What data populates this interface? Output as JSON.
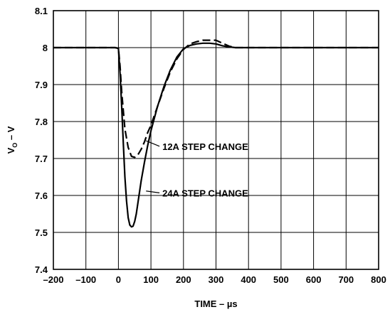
{
  "chart_data": {
    "type": "line",
    "title": "",
    "xlabel": "TIME – µs",
    "ylabel_main": "V",
    "ylabel_sub": "O",
    "ylabel_rest": " – V",
    "xlim": [
      -200,
      800
    ],
    "ylim": [
      7.4,
      8.1
    ],
    "xticks": [
      -200,
      -100,
      0,
      100,
      200,
      300,
      400,
      500,
      600,
      700,
      800
    ],
    "xtick_labels": [
      "–200",
      "–100",
      "0",
      "100",
      "200",
      "300",
      "400",
      "500",
      "600",
      "700",
      "800"
    ],
    "yticks": [
      7.4,
      7.5,
      7.6,
      7.7,
      7.8,
      7.9,
      8.0,
      8.1
    ],
    "ytick_labels": [
      "7.4",
      "7.5",
      "7.6",
      "7.7",
      "7.8",
      "7.9",
      "8",
      "8.1"
    ],
    "grid": true,
    "series": [
      {
        "name": "12A STEP CHANGE",
        "style": "dashed",
        "x": [
          -200,
          -10,
          0,
          5,
          10,
          20,
          30,
          40,
          50,
          60,
          70,
          80,
          90,
          100,
          120,
          140,
          160,
          180,
          200,
          220,
          240,
          260,
          280,
          300,
          320,
          340,
          360,
          380,
          400,
          800
        ],
        "y": [
          8.0,
          8.0,
          7.998,
          7.95,
          7.88,
          7.78,
          7.73,
          7.706,
          7.703,
          7.71,
          7.725,
          7.745,
          7.77,
          7.79,
          7.84,
          7.89,
          7.935,
          7.97,
          7.995,
          8.01,
          8.016,
          8.02,
          8.02,
          8.02,
          8.012,
          8.004,
          8.0,
          8.0,
          8.0,
          8.0
        ]
      },
      {
        "name": "24A STEP CHANGE",
        "style": "solid",
        "x": [
          -200,
          -10,
          0,
          5,
          10,
          15,
          20,
          25,
          30,
          35,
          40,
          45,
          50,
          55,
          60,
          70,
          80,
          90,
          100,
          120,
          140,
          160,
          180,
          200,
          220,
          240,
          260,
          280,
          300,
          320,
          340,
          360,
          380,
          400,
          800
        ],
        "y": [
          8.0,
          8.0,
          7.998,
          7.93,
          7.84,
          7.74,
          7.65,
          7.585,
          7.54,
          7.52,
          7.515,
          7.517,
          7.53,
          7.55,
          7.58,
          7.64,
          7.69,
          7.735,
          7.775,
          7.84,
          7.895,
          7.94,
          7.975,
          7.997,
          8.006,
          8.01,
          8.012,
          8.012,
          8.01,
          8.005,
          8.002,
          8.0,
          8.0,
          8.0,
          8.0
        ]
      }
    ],
    "annotations": [
      {
        "text": "12A STEP CHANGE",
        "series": 0,
        "x": 85,
        "y": 7.748,
        "label_x": 135,
        "label_y": 7.733
      },
      {
        "text": "24A STEP CHANGE",
        "series": 1,
        "x": 85,
        "y": 7.612,
        "label_x": 135,
        "label_y": 7.607
      }
    ]
  }
}
